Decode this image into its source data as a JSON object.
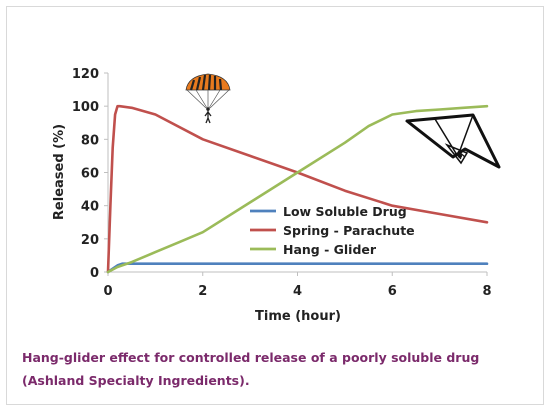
{
  "colors": {
    "low": "#4f81bd",
    "spring": "#c0504d",
    "hang": "#9bbb59",
    "caption": "#7b2a6b",
    "axis": "#bfbfbf"
  },
  "caption": {
    "line1": "Hang-glider effect for controlled release of a poorly soluble drug",
    "line2": "(Ashland Specialty Ingredients)."
  },
  "icons": [
    "parachute-icon",
    "hang-glider-icon"
  ],
  "chart_data": {
    "type": "line",
    "xlabel": "Time (hour)",
    "ylabel": "Released (%)",
    "xlim": [
      0,
      8
    ],
    "ylim": [
      0,
      120
    ],
    "xticks": [
      0,
      2,
      4,
      6,
      8
    ],
    "yticks": [
      0,
      20,
      40,
      60,
      80,
      100,
      120
    ],
    "grid": false,
    "legend_position": "center-right",
    "series": [
      {
        "name": "Low Soluble Drug",
        "color": "#4f81bd",
        "x": [
          0,
          0.1,
          0.2,
          0.3,
          0.5,
          1,
          2,
          4,
          6,
          8
        ],
        "y": [
          0,
          2,
          4,
          5,
          5,
          5,
          5,
          5,
          5,
          5
        ]
      },
      {
        "name": "Spring - Parachute",
        "color": "#c0504d",
        "x": [
          0,
          0.05,
          0.1,
          0.15,
          0.2,
          0.25,
          0.5,
          1,
          2,
          3,
          4,
          5,
          6,
          7,
          8
        ],
        "y": [
          0,
          40,
          75,
          95,
          100,
          100,
          99,
          95,
          80,
          70,
          60,
          49,
          40,
          35,
          30
        ]
      },
      {
        "name": "Hang - Glider",
        "color": "#9bbb59",
        "x": [
          0,
          0.2,
          0.5,
          1,
          1.5,
          2,
          3,
          4,
          5,
          5.5,
          6,
          6.5,
          7,
          7.5,
          8
        ],
        "y": [
          0,
          3,
          6,
          12,
          18,
          24,
          42,
          60,
          78,
          88,
          95,
          97,
          98,
          99,
          100
        ]
      }
    ]
  }
}
